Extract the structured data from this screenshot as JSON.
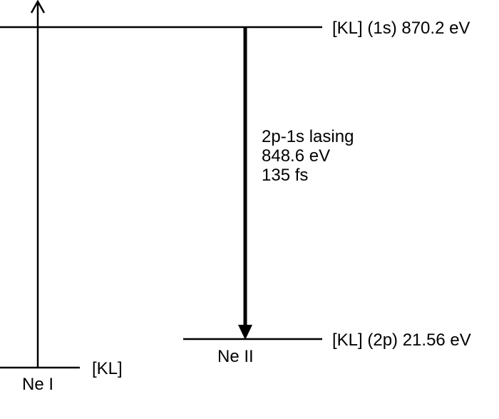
{
  "levels": [
    {
      "label": "[KL] (1s) 870.2 eV"
    },
    {
      "label": "[KL] (2p) 21.56 eV"
    },
    {
      "label": "[KL]"
    }
  ],
  "species": [
    {
      "label": "Ne II"
    },
    {
      "label": "Ne I"
    }
  ],
  "transition": {
    "lines": [
      "2p-1s lasing",
      "848.6 eV",
      "135 fs"
    ]
  }
}
